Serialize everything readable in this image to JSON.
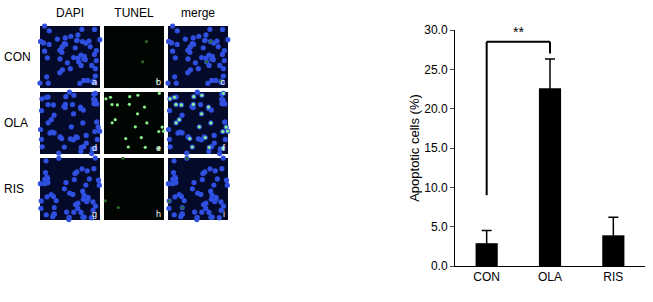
{
  "chart_data": {
    "type": "bar",
    "categories": [
      "CON",
      "OLA",
      "RIS"
    ],
    "values": [
      2.9,
      22.6,
      3.9
    ],
    "errors": [
      1.6,
      3.7,
      2.3
    ],
    "color": "#000000",
    "ylabel": "Apoptotic cells (%)",
    "ylim": [
      0,
      30
    ],
    "yticks": [
      {
        "value": 0,
        "label": "0.0"
      },
      {
        "value": 5,
        "label": "5.0"
      },
      {
        "value": 10,
        "label": "10.0"
      },
      {
        "value": 15,
        "label": "15.0"
      },
      {
        "value": 20,
        "label": "20.0"
      },
      {
        "value": 25,
        "label": "25.0"
      },
      {
        "value": 30,
        "label": "30.0"
      }
    ],
    "grid": false,
    "annotations": [
      {
        "text": "**",
        "from": "CON",
        "to": "OLA"
      }
    ]
  },
  "image_panels": {
    "columns": [
      "DAPI",
      "TUNEL",
      "merge"
    ],
    "rows": [
      "CON",
      "OLA",
      "RIS"
    ],
    "letters": [
      [
        "a",
        "b",
        "c"
      ],
      [
        "d",
        "e",
        "f"
      ],
      [
        "g",
        "h",
        "i"
      ]
    ]
  }
}
